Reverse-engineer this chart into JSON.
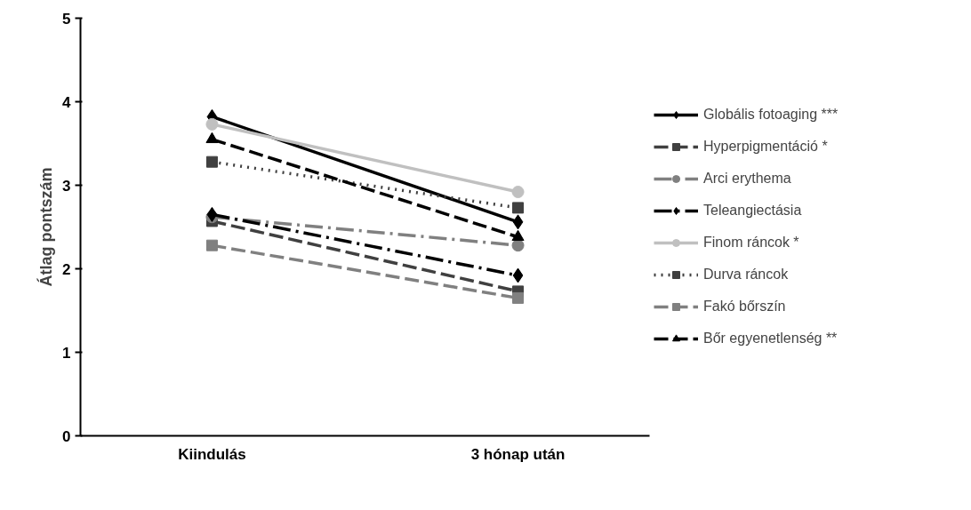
{
  "chart_data": {
    "type": "line",
    "ylabel": "Átlag pontszám",
    "categories": [
      "Kiindulás",
      "3 hónap után"
    ],
    "ylim": [
      0,
      5
    ],
    "yticks": [
      0,
      1,
      2,
      3,
      4,
      5
    ],
    "grid": false,
    "legend": "right",
    "series": [
      {
        "name": "Globális fotoaging ***",
        "color": "#000000",
        "values": [
          3.82,
          2.56
        ],
        "marker": "diamond",
        "line_style": "solid"
      },
      {
        "name": "Hyperpigmentáció *",
        "color": "#404040",
        "values": [
          2.57,
          1.73
        ],
        "marker": "square",
        "line_style": "dashed"
      },
      {
        "name": "Arci erythema",
        "color": "#808080",
        "values": [
          2.62,
          2.28
        ],
        "marker": "circle",
        "line_style": "dashdot"
      },
      {
        "name": "Teleangiectásia",
        "color": "#000000",
        "values": [
          2.65,
          1.92
        ],
        "marker": "diamond",
        "line_style": "dashdot"
      },
      {
        "name": "Finom ráncok *",
        "color": "#c0c0c0",
        "values": [
          3.73,
          2.92
        ],
        "marker": "circle",
        "line_style": "solid"
      },
      {
        "name": "Durva ráncok",
        "color": "#404040",
        "values": [
          3.28,
          2.73
        ],
        "marker": "square",
        "line_style": "dotted"
      },
      {
        "name": "Fakó bőrszín",
        "color": "#808080",
        "values": [
          2.28,
          1.65
        ],
        "marker": "square",
        "line_style": "dashed"
      },
      {
        "name": "Bőr egyenetlenség **",
        "color": "#000000",
        "values": [
          3.55,
          2.38
        ],
        "marker": "triangle",
        "line_style": "dashed"
      }
    ]
  }
}
